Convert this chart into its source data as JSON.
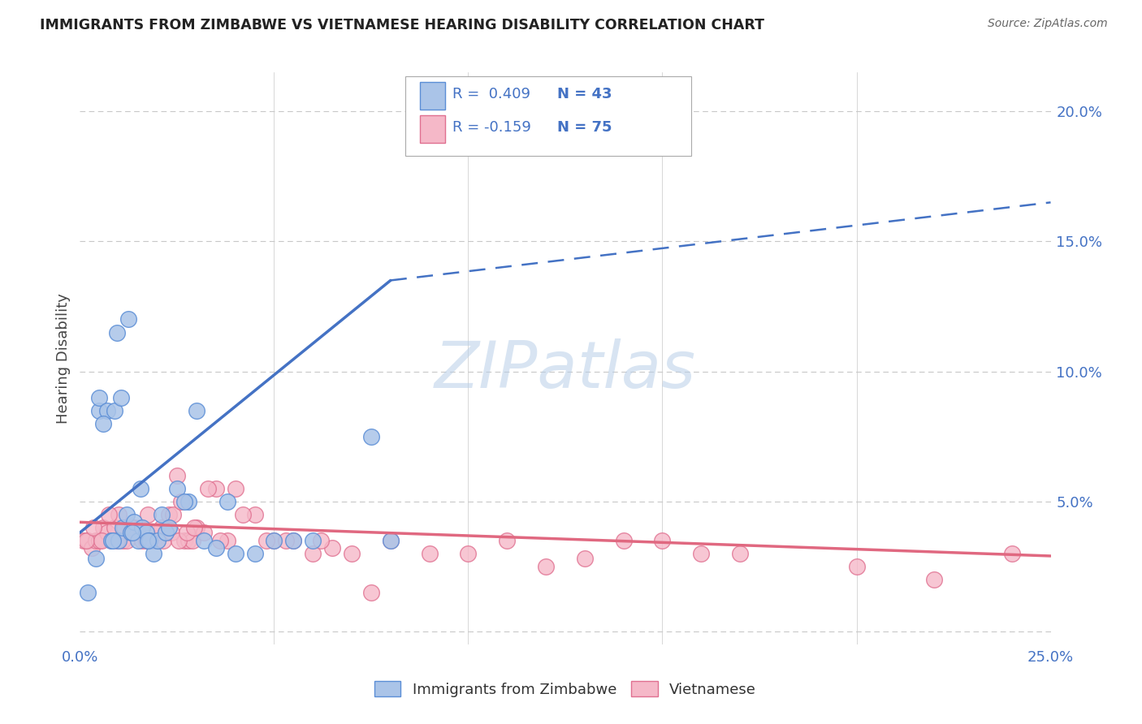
{
  "title": "IMMIGRANTS FROM ZIMBABWE VS VIETNAMESE HEARING DISABILITY CORRELATION CHART",
  "source": "Source: ZipAtlas.com",
  "ylabel": "Hearing Disability",
  "xlim": [
    0.0,
    25.0
  ],
  "ylim": [
    -0.5,
    21.5
  ],
  "color_zimbabwe_fill": "#aac4e8",
  "color_zimbabwe_edge": "#5b8ed6",
  "color_vietnamese_fill": "#f5b8c8",
  "color_vietnamese_edge": "#e07090",
  "color_line_zimbabwe": "#4472c4",
  "color_line_vietnamese": "#e06880",
  "color_grid": "#c8c8c8",
  "color_tick": "#4472c4",
  "color_title": "#222222",
  "color_source": "#666666",
  "color_ylabel": "#444444",
  "color_legend_text": "#333333",
  "color_legend_rval": "#4472c4",
  "color_watermark": "#b8cfe8",
  "watermark_text": "ZIPatlas",
  "zimbabwe_x": [
    0.5,
    0.5,
    0.7,
    0.8,
    0.9,
    1.0,
    1.1,
    1.2,
    1.3,
    1.4,
    1.5,
    1.6,
    1.7,
    1.8,
    1.9,
    2.0,
    2.1,
    2.2,
    2.5,
    2.8,
    3.0,
    3.2,
    3.5,
    4.0,
    4.5,
    5.0,
    5.5,
    6.0,
    0.4,
    0.6,
    0.85,
    1.05,
    1.35,
    1.55,
    1.75,
    2.3,
    2.7,
    3.8,
    7.5,
    0.2,
    0.95,
    1.25,
    8.0
  ],
  "zimbabwe_y": [
    8.5,
    9.0,
    8.5,
    3.5,
    8.5,
    3.5,
    4.0,
    4.5,
    3.8,
    4.2,
    3.5,
    4.0,
    3.8,
    3.5,
    3.0,
    3.5,
    4.5,
    3.8,
    5.5,
    5.0,
    8.5,
    3.5,
    3.2,
    3.0,
    3.0,
    3.5,
    3.5,
    3.5,
    2.8,
    8.0,
    3.5,
    9.0,
    3.8,
    5.5,
    3.5,
    4.0,
    5.0,
    5.0,
    7.5,
    1.5,
    11.5,
    12.0,
    3.5
  ],
  "zimbabwe_line_x0": 0.0,
  "zimbabwe_line_y0": 3.8,
  "zimbabwe_line_x1": 8.0,
  "zimbabwe_line_y1": 13.5,
  "zimbabwe_dash_x0": 8.0,
  "zimbabwe_dash_y0": 13.5,
  "zimbabwe_dash_x1": 25.0,
  "zimbabwe_dash_y1": 16.5,
  "vietnamese_x": [
    0.1,
    0.2,
    0.3,
    0.4,
    0.5,
    0.6,
    0.7,
    0.8,
    0.9,
    1.0,
    1.1,
    1.2,
    1.3,
    1.4,
    1.5,
    1.6,
    1.7,
    1.8,
    1.9,
    2.0,
    2.1,
    2.2,
    2.3,
    2.4,
    2.5,
    2.6,
    2.7,
    2.8,
    2.9,
    3.0,
    3.2,
    3.5,
    3.8,
    4.0,
    4.5,
    5.0,
    5.5,
    6.0,
    6.5,
    7.0,
    8.0,
    9.0,
    10.0,
    12.0,
    14.0,
    16.0,
    0.15,
    0.35,
    0.55,
    0.75,
    0.95,
    1.15,
    1.35,
    1.55,
    1.75,
    1.95,
    2.15,
    2.35,
    2.55,
    2.75,
    2.95,
    3.3,
    3.6,
    4.2,
    4.8,
    5.3,
    6.2,
    7.5,
    11.0,
    13.0,
    15.0,
    17.0,
    20.0,
    22.0,
    24.0
  ],
  "vietnamese_y": [
    3.5,
    3.5,
    3.2,
    3.5,
    3.5,
    4.0,
    3.8,
    3.5,
    4.0,
    4.5,
    3.5,
    3.5,
    4.0,
    4.0,
    3.8,
    3.5,
    3.5,
    3.5,
    3.5,
    3.5,
    4.0,
    3.8,
    4.5,
    4.5,
    6.0,
    5.0,
    3.5,
    3.5,
    3.5,
    4.0,
    3.8,
    5.5,
    3.5,
    5.5,
    4.5,
    3.5,
    3.5,
    3.0,
    3.2,
    3.0,
    3.5,
    3.0,
    3.0,
    2.5,
    3.5,
    3.0,
    3.5,
    4.0,
    3.5,
    4.5,
    3.5,
    4.0,
    4.0,
    4.0,
    4.5,
    3.8,
    3.5,
    3.8,
    3.5,
    3.8,
    4.0,
    5.5,
    3.5,
    4.5,
    3.5,
    3.5,
    3.5,
    1.5,
    3.5,
    2.8,
    3.5,
    3.0,
    2.5,
    2.0,
    3.0
  ],
  "vietnamese_line_x0": 0.0,
  "vietnamese_line_y0": 4.2,
  "vietnamese_line_x1": 25.0,
  "vietnamese_line_y1": 2.9,
  "yticks": [
    0,
    5,
    10,
    15,
    20
  ],
  "ytick_labels": [
    "",
    "5.0%",
    "10.0%",
    "15.0%",
    "20.0%"
  ],
  "xtick_labels_left": "0.0%",
  "xtick_labels_right": "25.0%",
  "legend_r1": "R =  0.409",
  "legend_n1": "N = 43",
  "legend_r2": "R = -0.159",
  "legend_n2": "N = 75",
  "legend_label1": "Immigrants from Zimbabwe",
  "legend_label2": "Vietnamese"
}
